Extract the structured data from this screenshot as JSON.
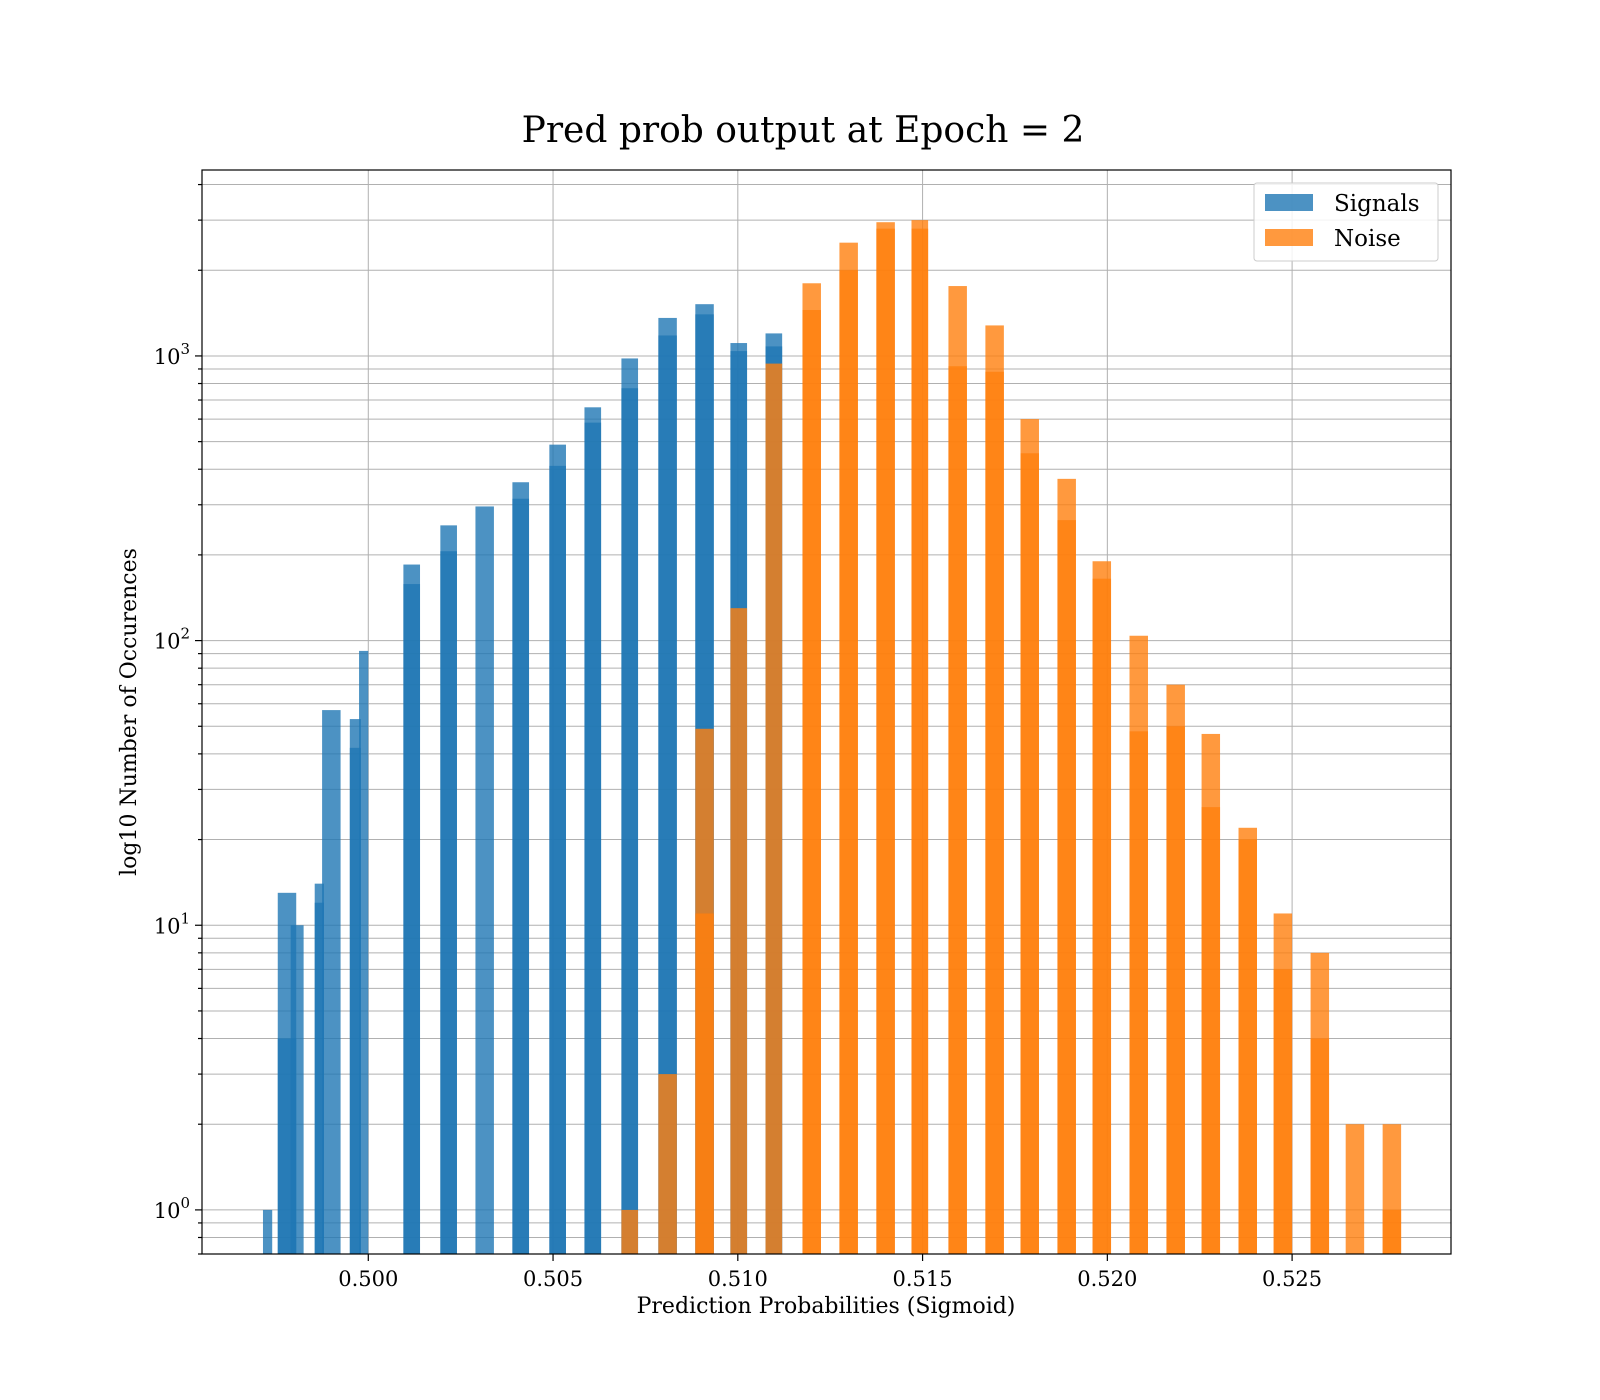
{
  "chart_data": {
    "type": "bar",
    "title": "Pred prob output at Epoch = 2",
    "xlabel": "Prediction Probabilities (Sigmoid)",
    "ylabel": "log10 Number of Occurences",
    "y_scale": "log",
    "xlim": [
      0.4955,
      0.5293
    ],
    "ylim": [
      0.7,
      4500
    ],
    "x_ticks": [
      0.5,
      0.505,
      0.51,
      0.515,
      0.52,
      0.525
    ],
    "x_tick_labels": [
      "0.500",
      "0.505",
      "0.510",
      "0.515",
      "0.520",
      "0.525"
    ],
    "y_ticks": [
      {
        "value": 1,
        "base": "10",
        "exp": "0"
      },
      {
        "value": 10,
        "base": "10",
        "exp": "1"
      },
      {
        "value": 100,
        "base": "10",
        "exp": "2"
      },
      {
        "value": 1000,
        "base": "10",
        "exp": "3"
      }
    ],
    "grid": true,
    "legend_position": "top-right",
    "series": [
      {
        "name": "Signals",
        "color": "#1f77b4",
        "bars": [
          {
            "x": 0.49715,
            "w": 0.00025,
            "value": 1
          },
          {
            "x": 0.49755,
            "w": 0.0005,
            "value": 13
          },
          {
            "x": 0.49755,
            "w": 0.0005,
            "value": 4
          },
          {
            "x": 0.4979,
            "w": 0.00035,
            "value": 10
          },
          {
            "x": 0.49855,
            "w": 0.00025,
            "value": 14
          },
          {
            "x": 0.49855,
            "w": 0.00025,
            "value": 12
          },
          {
            "x": 0.49875,
            "w": 0.0005,
            "value": 57
          },
          {
            "x": 0.4995,
            "w": 0.0003,
            "value": 53
          },
          {
            "x": 0.4995,
            "w": 0.0003,
            "value": 42
          },
          {
            "x": 0.49975,
            "w": 0.00025,
            "value": 92
          },
          {
            "x": 0.50095,
            "w": 0.00045,
            "value": 185
          },
          {
            "x": 0.50095,
            "w": 0.00045,
            "value": 158
          },
          {
            "x": 0.50195,
            "w": 0.00045,
            "value": 254
          },
          {
            "x": 0.50195,
            "w": 0.00045,
            "value": 206
          },
          {
            "x": 0.5029,
            "w": 0.0005,
            "value": 296
          },
          {
            "x": 0.5039,
            "w": 0.00045,
            "value": 360
          },
          {
            "x": 0.5039,
            "w": 0.00045,
            "value": 315
          },
          {
            "x": 0.5049,
            "w": 0.00045,
            "value": 488
          },
          {
            "x": 0.5049,
            "w": 0.00045,
            "value": 411
          },
          {
            "x": 0.50585,
            "w": 0.00045,
            "value": 660
          },
          {
            "x": 0.50585,
            "w": 0.00045,
            "value": 583
          },
          {
            "x": 0.50685,
            "w": 0.00045,
            "value": 980
          },
          {
            "x": 0.50685,
            "w": 0.00045,
            "value": 770
          },
          {
            "x": 0.50785,
            "w": 0.0005,
            "value": 1360
          },
          {
            "x": 0.50785,
            "w": 0.0005,
            "value": 1180
          },
          {
            "x": 0.50885,
            "w": 0.0005,
            "value": 1520
          },
          {
            "x": 0.50885,
            "w": 0.0005,
            "value": 1400
          },
          {
            "x": 0.5098,
            "w": 0.00045,
            "value": 1110
          },
          {
            "x": 0.5098,
            "w": 0.00045,
            "value": 1040
          },
          {
            "x": 0.51075,
            "w": 0.00045,
            "value": 1200
          },
          {
            "x": 0.51075,
            "w": 0.00045,
            "value": 1080
          }
        ]
      },
      {
        "name": "Noise",
        "color": "#ff7f0e",
        "bars": [
          {
            "x": 0.50685,
            "w": 0.00045,
            "value": 1
          },
          {
            "x": 0.50785,
            "w": 0.0005,
            "value": 3
          },
          {
            "x": 0.50885,
            "w": 0.0005,
            "value": 49
          },
          {
            "x": 0.50885,
            "w": 0.0005,
            "value": 11
          },
          {
            "x": 0.5098,
            "w": 0.00045,
            "value": 130
          },
          {
            "x": 0.51075,
            "w": 0.00045,
            "value": 940
          },
          {
            "x": 0.51175,
            "w": 0.0005,
            "value": 1800
          },
          {
            "x": 0.51175,
            "w": 0.0005,
            "value": 1450
          },
          {
            "x": 0.51275,
            "w": 0.0005,
            "value": 2500
          },
          {
            "x": 0.51275,
            "w": 0.0005,
            "value": 2000
          },
          {
            "x": 0.51375,
            "w": 0.0005,
            "value": 2950
          },
          {
            "x": 0.51375,
            "w": 0.0005,
            "value": 2800
          },
          {
            "x": 0.5147,
            "w": 0.00045,
            "value": 3000
          },
          {
            "x": 0.5147,
            "w": 0.00045,
            "value": 2800
          },
          {
            "x": 0.5157,
            "w": 0.0005,
            "value": 1760
          },
          {
            "x": 0.5157,
            "w": 0.0005,
            "value": 920
          },
          {
            "x": 0.5167,
            "w": 0.0005,
            "value": 1280
          },
          {
            "x": 0.5167,
            "w": 0.0005,
            "value": 880
          },
          {
            "x": 0.51765,
            "w": 0.0005,
            "value": 600
          },
          {
            "x": 0.51765,
            "w": 0.0005,
            "value": 455
          },
          {
            "x": 0.51865,
            "w": 0.0005,
            "value": 370
          },
          {
            "x": 0.51865,
            "w": 0.0005,
            "value": 265
          },
          {
            "x": 0.5196,
            "w": 0.0005,
            "value": 190
          },
          {
            "x": 0.5196,
            "w": 0.0005,
            "value": 165
          },
          {
            "x": 0.5206,
            "w": 0.0005,
            "value": 104
          },
          {
            "x": 0.5206,
            "w": 0.0005,
            "value": 48
          },
          {
            "x": 0.5216,
            "w": 0.0005,
            "value": 70
          },
          {
            "x": 0.5216,
            "w": 0.0005,
            "value": 50
          },
          {
            "x": 0.52255,
            "w": 0.0005,
            "value": 47
          },
          {
            "x": 0.52255,
            "w": 0.0005,
            "value": 26
          },
          {
            "x": 0.52355,
            "w": 0.0005,
            "value": 22
          },
          {
            "x": 0.52355,
            "w": 0.0005,
            "value": 20
          },
          {
            "x": 0.5245,
            "w": 0.0005,
            "value": 11
          },
          {
            "x": 0.5245,
            "w": 0.0005,
            "value": 7
          },
          {
            "x": 0.5255,
            "w": 0.0005,
            "value": 8
          },
          {
            "x": 0.5255,
            "w": 0.0005,
            "value": 4
          },
          {
            "x": 0.52645,
            "w": 0.0005,
            "value": 2
          },
          {
            "x": 0.52745,
            "w": 0.0005,
            "value": 2
          },
          {
            "x": 0.52745,
            "w": 0.0005,
            "value": 1
          }
        ]
      }
    ]
  }
}
